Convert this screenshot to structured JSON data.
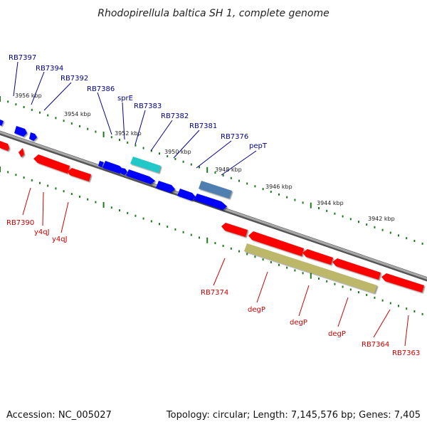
{
  "title": "Rhodopirellula baltica SH 1, complete genome",
  "footer": {
    "accession": "Accession: NC_005027",
    "summary": "Topology: circular; Length: 7,145,576 bp; Genes: 7,405"
  },
  "colors": {
    "forward_label": "#00008b",
    "reverse_label": "#cc0000",
    "backbone": "#888888",
    "tick": "#1e7a1e",
    "gene_red": "#ff0000",
    "gene_blue": "#0000ff",
    "gene_cyan": "#20c8c8",
    "gene_steel": "#4f7fb0",
    "gene_khaki": "#bdb76b"
  },
  "scale": {
    "unit": "kbp",
    "labels": [
      {
        "text": "3956 kbp"
      },
      {
        "text": "3954 kbp"
      },
      {
        "text": "3952 kbp"
      },
      {
        "text": "3950 kbp"
      },
      {
        "text": "3948 kbp"
      },
      {
        "text": "3946 kbp"
      },
      {
        "text": "3944 kbp"
      },
      {
        "text": "3942 kbp"
      }
    ]
  },
  "forward_labels": [
    {
      "text": "RB7397"
    },
    {
      "text": "RB7394"
    },
    {
      "text": "RB7392"
    },
    {
      "text": "RB7386"
    },
    {
      "text": "sprE"
    },
    {
      "text": "RB7383"
    },
    {
      "text": "RB7382"
    },
    {
      "text": "RB7381"
    },
    {
      "text": "RB7376"
    },
    {
      "text": "pepT"
    }
  ],
  "reverse_labels": [
    {
      "text": "RB7390"
    },
    {
      "text": "y4qJ"
    },
    {
      "text": "y4qJ"
    },
    {
      "text": "RB7374"
    },
    {
      "text": "degP"
    },
    {
      "text": "degP"
    },
    {
      "text": "degP"
    },
    {
      "text": "RB7364"
    },
    {
      "text": "RB7363"
    }
  ]
}
